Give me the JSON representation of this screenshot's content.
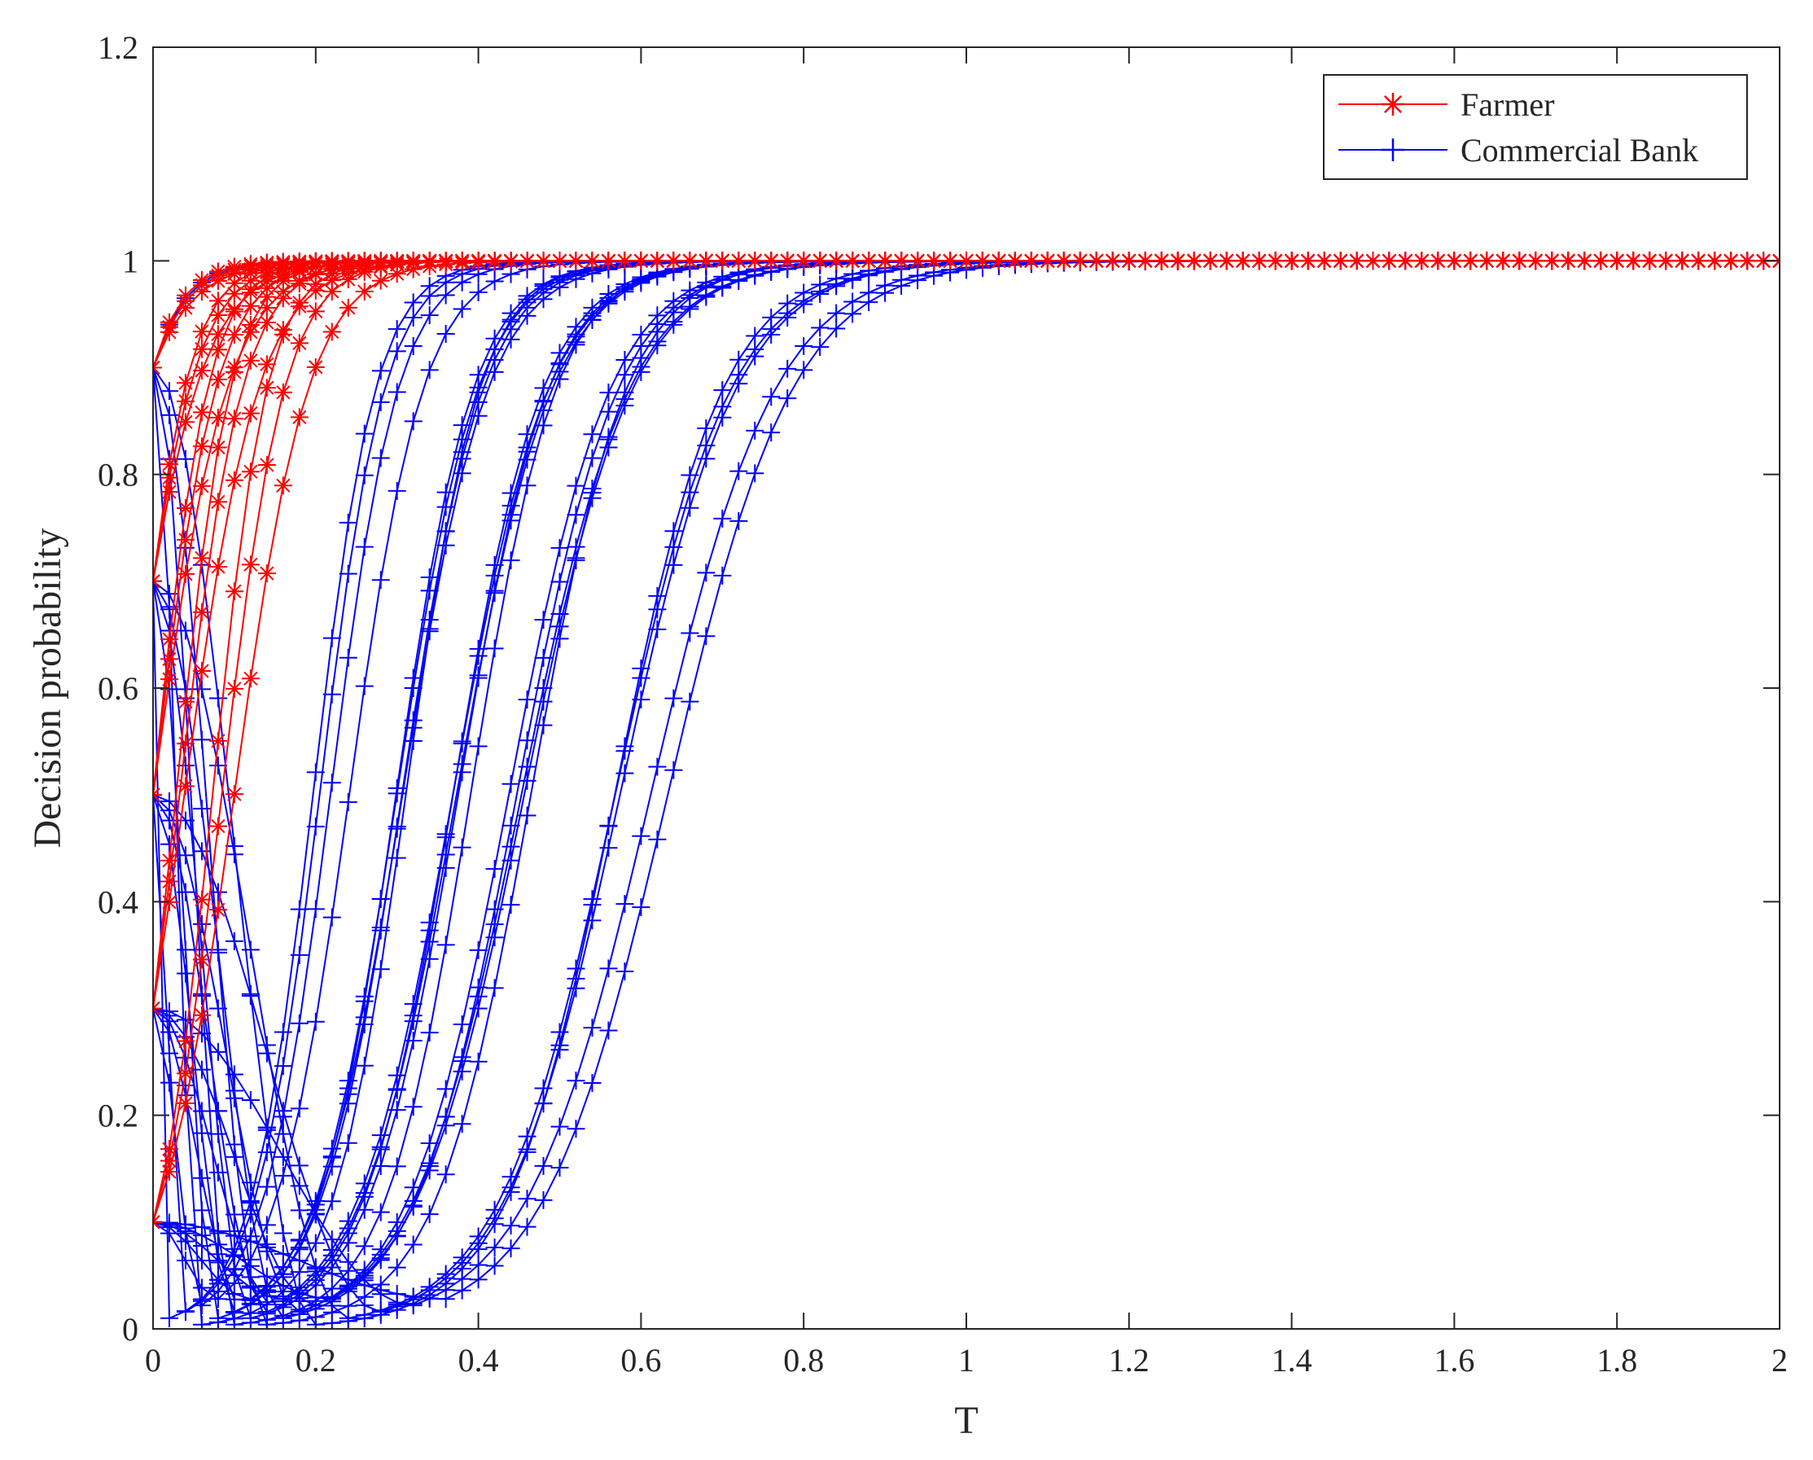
{
  "chart_data": {
    "type": "line",
    "xlabel": "T",
    "ylabel": "Decision probability",
    "xlim": [
      0,
      2
    ],
    "ylim": [
      0,
      1.2
    ],
    "xticks": [
      0,
      0.2,
      0.4,
      0.6,
      0.8,
      1,
      1.2,
      1.4,
      1.6,
      1.8,
      2
    ],
    "xtick_labels": [
      "0",
      "0.2",
      "0.4",
      "0.6",
      "0.8",
      "1",
      "1.2",
      "1.4",
      "1.6",
      "1.8",
      "2"
    ],
    "yticks": [
      0,
      0.2,
      0.4,
      0.6,
      0.8,
      1,
      1.2
    ],
    "ytick_labels": [
      "0",
      "0.2",
      "0.4",
      "0.6",
      "0.8",
      "1",
      "1.2"
    ],
    "grid": false,
    "legend_position": "top-right",
    "x_sample_step": 0.02,
    "series": [
      {
        "name": "Farmer",
        "color": "#ff0000",
        "marker": "asterisk",
        "curves": [
          {
            "y0": 0.9,
            "rate": 30
          },
          {
            "y0": 0.7,
            "rate": 30
          },
          {
            "y0": 0.5,
            "rate": 30
          },
          {
            "y0": 0.3,
            "rate": 30
          },
          {
            "y0": 0.1,
            "rate": 30
          },
          {
            "y0": 0.9,
            "rate": 22
          },
          {
            "y0": 0.7,
            "rate": 22
          },
          {
            "y0": 0.5,
            "rate": 22
          },
          {
            "y0": 0.3,
            "rate": 22
          },
          {
            "y0": 0.1,
            "rate": 22
          },
          {
            "y0": 0.9,
            "rate": 26
          },
          {
            "y0": 0.7,
            "rate": 26
          },
          {
            "y0": 0.5,
            "rate": 26
          },
          {
            "y0": 0.3,
            "rate": 26
          },
          {
            "y0": 0.1,
            "rate": 26
          }
        ]
      },
      {
        "name": "Commercial Bank",
        "color": "#0000ff",
        "marker": "plus",
        "curves": [
          {
            "y0": 0.9,
            "tmin": 0.0,
            "rate": 28
          },
          {
            "y0": 0.7,
            "tmin": 0.02,
            "rate": 26
          },
          {
            "y0": 0.5,
            "tmin": 0.04,
            "rate": 25
          },
          {
            "y0": 0.3,
            "tmin": 0.06,
            "rate": 24
          },
          {
            "y0": 0.1,
            "tmin": 0.08,
            "rate": 22
          },
          {
            "y0": 0.9,
            "tmin": 0.06,
            "rate": 22
          },
          {
            "y0": 0.7,
            "tmin": 0.08,
            "rate": 21
          },
          {
            "y0": 0.5,
            "tmin": 0.1,
            "rate": 20
          },
          {
            "y0": 0.3,
            "tmin": 0.11,
            "rate": 20
          },
          {
            "y0": 0.1,
            "tmin": 0.12,
            "rate": 19
          },
          {
            "y0": 0.9,
            "tmin": 0.1,
            "rate": 19
          },
          {
            "y0": 0.7,
            "tmin": 0.12,
            "rate": 18
          },
          {
            "y0": 0.5,
            "tmin": 0.14,
            "rate": 18
          },
          {
            "y0": 0.3,
            "tmin": 0.15,
            "rate": 17
          },
          {
            "y0": 0.1,
            "tmin": 0.16,
            "rate": 17
          },
          {
            "y0": 0.9,
            "tmin": 0.14,
            "rate": 17
          },
          {
            "y0": 0.7,
            "tmin": 0.16,
            "rate": 16
          },
          {
            "y0": 0.5,
            "tmin": 0.18,
            "rate": 16
          },
          {
            "y0": 0.3,
            "tmin": 0.2,
            "rate": 15
          },
          {
            "y0": 0.1,
            "tmin": 0.22,
            "rate": 15
          },
          {
            "y0": 0.9,
            "tmin": 0.2,
            "rate": 15
          },
          {
            "y0": 0.7,
            "tmin": 0.24,
            "rate": 14
          },
          {
            "y0": 0.5,
            "tmin": 0.28,
            "rate": 14
          },
          {
            "y0": 0.3,
            "tmin": 0.32,
            "rate": 13
          },
          {
            "y0": 0.1,
            "tmin": 0.36,
            "rate": 13
          }
        ]
      }
    ]
  }
}
